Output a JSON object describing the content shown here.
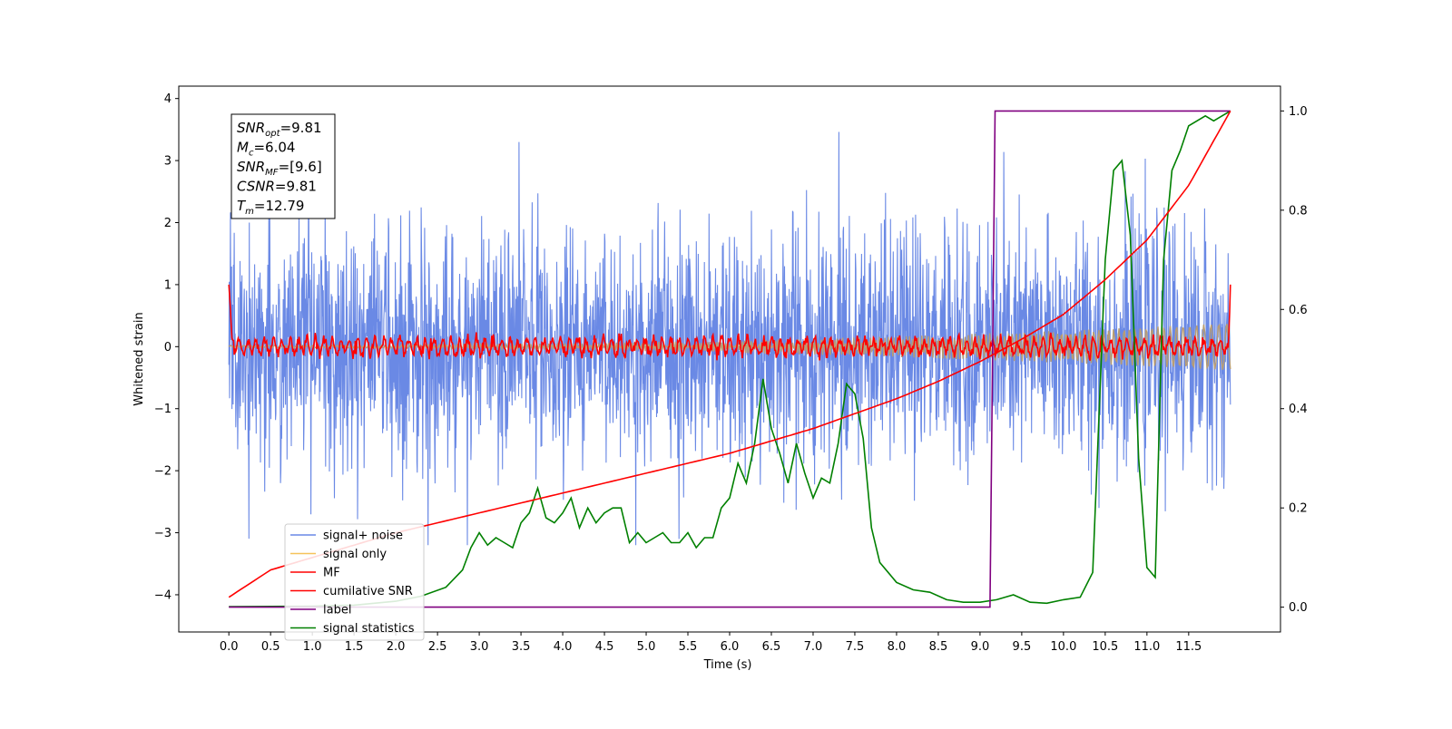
{
  "chart_data": {
    "type": "line",
    "xlabel": "Time (s)",
    "ylabel": "Whitened strain",
    "xlim": [
      -0.6,
      12.6
    ],
    "ylim": [
      -4.6,
      4.2
    ],
    "y2lim": [
      -0.05,
      1.05
    ],
    "xticks": [
      "0.0",
      "0.5",
      "1.0",
      "1.5",
      "2.0",
      "2.5",
      "3.0",
      "3.5",
      "4.0",
      "4.5",
      "5.0",
      "5.5",
      "6.0",
      "6.5",
      "7.0",
      "7.5",
      "8.0",
      "8.5",
      "9.0",
      "9.5",
      "10.0",
      "10.5",
      "11.0",
      "11.5"
    ],
    "yticks": [
      "4",
      "3",
      "2",
      "1",
      "0",
      "−1",
      "−2",
      "−3",
      "−4"
    ],
    "y2ticks": [
      "1.0",
      "0.8",
      "0.6",
      "0.4",
      "0.2",
      "0.0"
    ],
    "grid": false,
    "legend_position": "lower-left",
    "info_box": [
      {
        "main": "SNR",
        "sub": "opt",
        "value": "=9.81"
      },
      {
        "main": "M",
        "sub": "c",
        "value": "=6.04"
      },
      {
        "main": "SNR",
        "sub": "MF",
        "value": "=[9.6]"
      },
      {
        "main": "CSNR",
        "sub": "",
        "value": "=9.81"
      },
      {
        "main": "T",
        "sub": "m",
        "value": "=12.79"
      }
    ],
    "series": [
      {
        "name": "signal+ noise",
        "color": "#6a89e5",
        "axis": "left",
        "kind": "noise",
        "x_range": [
          0.0,
          12.0
        ],
        "band": [
          -1.6,
          1.6
        ],
        "extreme": [
          -3.2,
          3.8
        ]
      },
      {
        "name": "signal only",
        "color": "#f6c35a",
        "axis": "left",
        "kind": "chirp",
        "x_range": [
          0.0,
          12.0
        ],
        "amplitude_start": 0.02,
        "amplitude_end": 0.38
      },
      {
        "name": "MF",
        "color": "#ff0000",
        "axis": "left",
        "kind": "oscillation",
        "x_range": [
          0.0,
          12.0
        ],
        "start_value": 1.0,
        "end_value": 1.0,
        "amplitude": 0.12
      },
      {
        "name": "cumilative SNR",
        "color": "#ff0000",
        "axis": "right",
        "x": [
          0.0,
          0.5,
          1.0,
          1.5,
          2.0,
          2.5,
          3.0,
          3.5,
          4.0,
          4.5,
          5.0,
          5.5,
          6.0,
          6.5,
          7.0,
          7.5,
          8.0,
          8.5,
          9.0,
          9.5,
          10.0,
          10.5,
          11.0,
          11.5,
          12.0
        ],
        "y": [
          0.02,
          0.075,
          0.1,
          0.125,
          0.15,
          0.17,
          0.19,
          0.21,
          0.23,
          0.25,
          0.27,
          0.29,
          0.31,
          0.335,
          0.36,
          0.39,
          0.42,
          0.455,
          0.495,
          0.54,
          0.59,
          0.66,
          0.74,
          0.85,
          1.0
        ]
      },
      {
        "name": "label",
        "color": "#800080",
        "axis": "right",
        "x": [
          0.0,
          9.12,
          9.18,
          12.0
        ],
        "y": [
          0.0,
          0.0,
          1.0,
          1.0
        ]
      },
      {
        "name": "signal statistics",
        "color": "#008000",
        "axis": "right",
        "x": [
          0.0,
          1.0,
          1.5,
          2.0,
          2.3,
          2.6,
          2.8,
          2.9,
          3.0,
          3.1,
          3.2,
          3.3,
          3.4,
          3.5,
          3.6,
          3.7,
          3.8,
          3.9,
          4.0,
          4.1,
          4.2,
          4.3,
          4.4,
          4.5,
          4.6,
          4.7,
          4.8,
          4.9,
          5.0,
          5.1,
          5.2,
          5.3,
          5.4,
          5.5,
          5.6,
          5.7,
          5.8,
          5.9,
          6.0,
          6.1,
          6.2,
          6.3,
          6.4,
          6.5,
          6.6,
          6.7,
          6.8,
          6.9,
          7.0,
          7.1,
          7.2,
          7.3,
          7.4,
          7.5,
          7.6,
          7.7,
          7.8,
          7.9,
          8.0,
          8.2,
          8.4,
          8.6,
          8.8,
          9.0,
          9.2,
          9.4,
          9.6,
          9.8,
          10.0,
          10.2,
          10.35,
          10.5,
          10.6,
          10.7,
          10.8,
          10.9,
          11.0,
          11.1,
          11.2,
          11.3,
          11.4,
          11.5,
          11.6,
          11.7,
          11.8,
          11.9,
          12.0
        ],
        "y": [
          0.001,
          0.002,
          0.004,
          0.012,
          0.022,
          0.04,
          0.075,
          0.12,
          0.15,
          0.125,
          0.14,
          0.13,
          0.12,
          0.17,
          0.19,
          0.24,
          0.18,
          0.17,
          0.19,
          0.22,
          0.16,
          0.2,
          0.17,
          0.19,
          0.2,
          0.2,
          0.13,
          0.15,
          0.13,
          0.14,
          0.15,
          0.13,
          0.13,
          0.15,
          0.12,
          0.14,
          0.14,
          0.2,
          0.22,
          0.29,
          0.25,
          0.33,
          0.46,
          0.36,
          0.31,
          0.25,
          0.33,
          0.27,
          0.22,
          0.26,
          0.25,
          0.33,
          0.45,
          0.43,
          0.34,
          0.16,
          0.09,
          0.07,
          0.05,
          0.035,
          0.03,
          0.015,
          0.01,
          0.01,
          0.015,
          0.025,
          0.01,
          0.008,
          0.015,
          0.02,
          0.07,
          0.7,
          0.88,
          0.9,
          0.75,
          0.3,
          0.08,
          0.06,
          0.7,
          0.88,
          0.92,
          0.97,
          0.98,
          0.99,
          0.98,
          0.99,
          1.0
        ]
      }
    ]
  }
}
